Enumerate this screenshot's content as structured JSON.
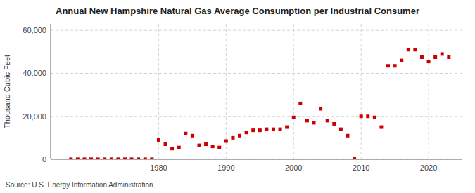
{
  "chart_data": {
    "type": "scatter",
    "title": "Annual New Hampshire Natural Gas Average Consumption per Industrial Consumer",
    "y_label": "Thousand Cubic Feet",
    "source": "Source: U.S. Energy Information Administration",
    "x": [
      1967,
      1968,
      1969,
      1970,
      1971,
      1972,
      1973,
      1974,
      1975,
      1976,
      1977,
      1978,
      1979,
      1980,
      1981,
      1982,
      1983,
      1984,
      1985,
      1986,
      1987,
      1988,
      1989,
      1990,
      1991,
      1992,
      1993,
      1994,
      1995,
      1996,
      1997,
      1998,
      1999,
      2000,
      2001,
      2002,
      2003,
      2004,
      2005,
      2006,
      2007,
      2008,
      2009,
      2010,
      2011,
      2012,
      2013,
      2014,
      2015,
      2016,
      2017,
      2018,
      2019,
      2020,
      2021,
      2022,
      2023
    ],
    "values": [
      50,
      50,
      50,
      50,
      50,
      50,
      50,
      50,
      50,
      50,
      50,
      50,
      50,
      9000,
      7000,
      5000,
      5500,
      12000,
      11000,
      6500,
      7000,
      6000,
      5500,
      8500,
      10000,
      11000,
      12500,
      13500,
      13500,
      14000,
      14000,
      14000,
      15000,
      19500,
      26000,
      18000,
      17000,
      23500,
      18000,
      16500,
      14000,
      11000,
      500,
      20000,
      20000,
      19500,
      15000,
      43500,
      43500,
      46000,
      51000,
      51000,
      47500,
      45500,
      47500,
      49000,
      47500
    ],
    "color": "#cc0000",
    "marker": "square",
    "xlim": [
      1964,
      2025
    ],
    "ylim": [
      0,
      63000
    ],
    "xticks": [
      1980,
      1990,
      2000,
      2010,
      2020
    ],
    "yticks": [
      0,
      {
        "value": 20000,
        "label": "20,000"
      },
      {
        "value": 40000,
        "label": "40,000"
      },
      {
        "value": 60000,
        "label": "60,000"
      }
    ],
    "grid": true
  }
}
